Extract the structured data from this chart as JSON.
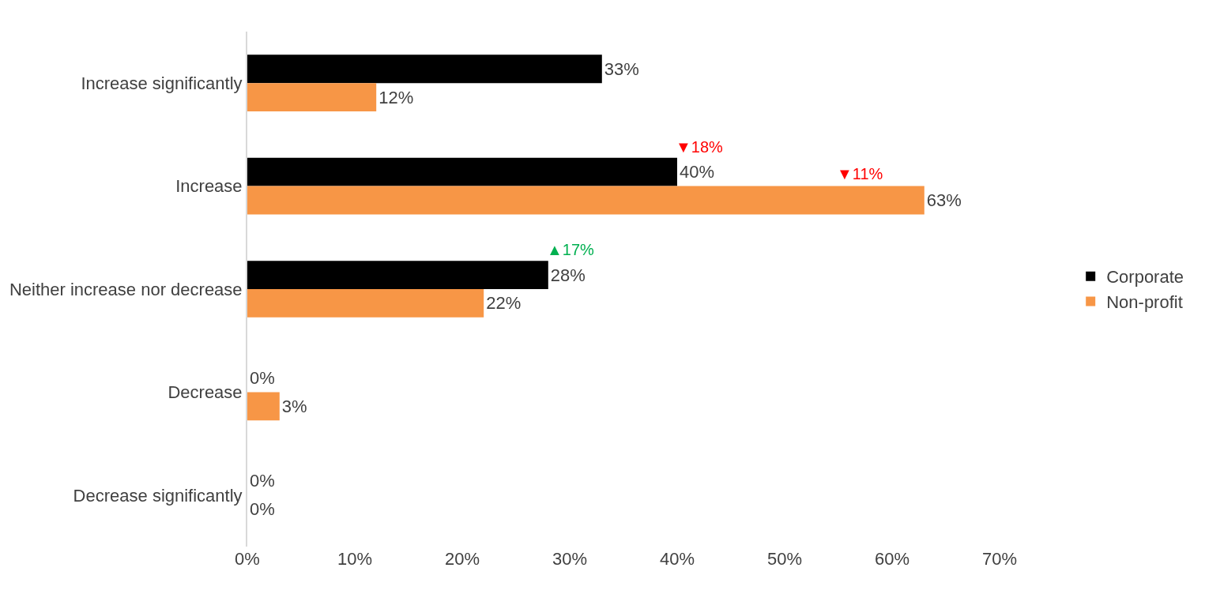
{
  "chart_data": {
    "type": "bar",
    "orientation": "horizontal",
    "categories": [
      "Increase significantly",
      "Increase",
      "Neither increase nor decrease",
      "Decrease",
      "Decrease significantly"
    ],
    "series": [
      {
        "name": "Corporate",
        "color": "#000000",
        "values": [
          33,
          40,
          28,
          0,
          0
        ],
        "value_labels": [
          "33%",
          "40%",
          "28%",
          "0%",
          "0%"
        ]
      },
      {
        "name": "Non-profit",
        "color": "#f79646",
        "values": [
          12,
          63,
          22,
          3,
          0
        ],
        "value_labels": [
          "12%",
          "63%",
          "22%",
          "3%",
          "0%"
        ]
      }
    ],
    "xlim": [
      0,
      70
    ],
    "xticks": [
      {
        "value": 0,
        "label": "0%"
      },
      {
        "value": 10,
        "label": "10%"
      },
      {
        "value": 20,
        "label": "20%"
      },
      {
        "value": 30,
        "label": "30%"
      },
      {
        "value": 40,
        "label": "40%"
      },
      {
        "value": 50,
        "label": "50%"
      },
      {
        "value": 60,
        "label": "60%"
      },
      {
        "value": 70,
        "label": "70%"
      }
    ],
    "annotations": [
      {
        "text": "▼18%",
        "x": 40,
        "y": "Increase"
      },
      {
        "text": "▼11%",
        "x": 55,
        "y": "Increase"
      },
      {
        "text": "▲17%",
        "x": 28,
        "y": "Neither increase nor decrease"
      }
    ],
    "legend": "right"
  }
}
